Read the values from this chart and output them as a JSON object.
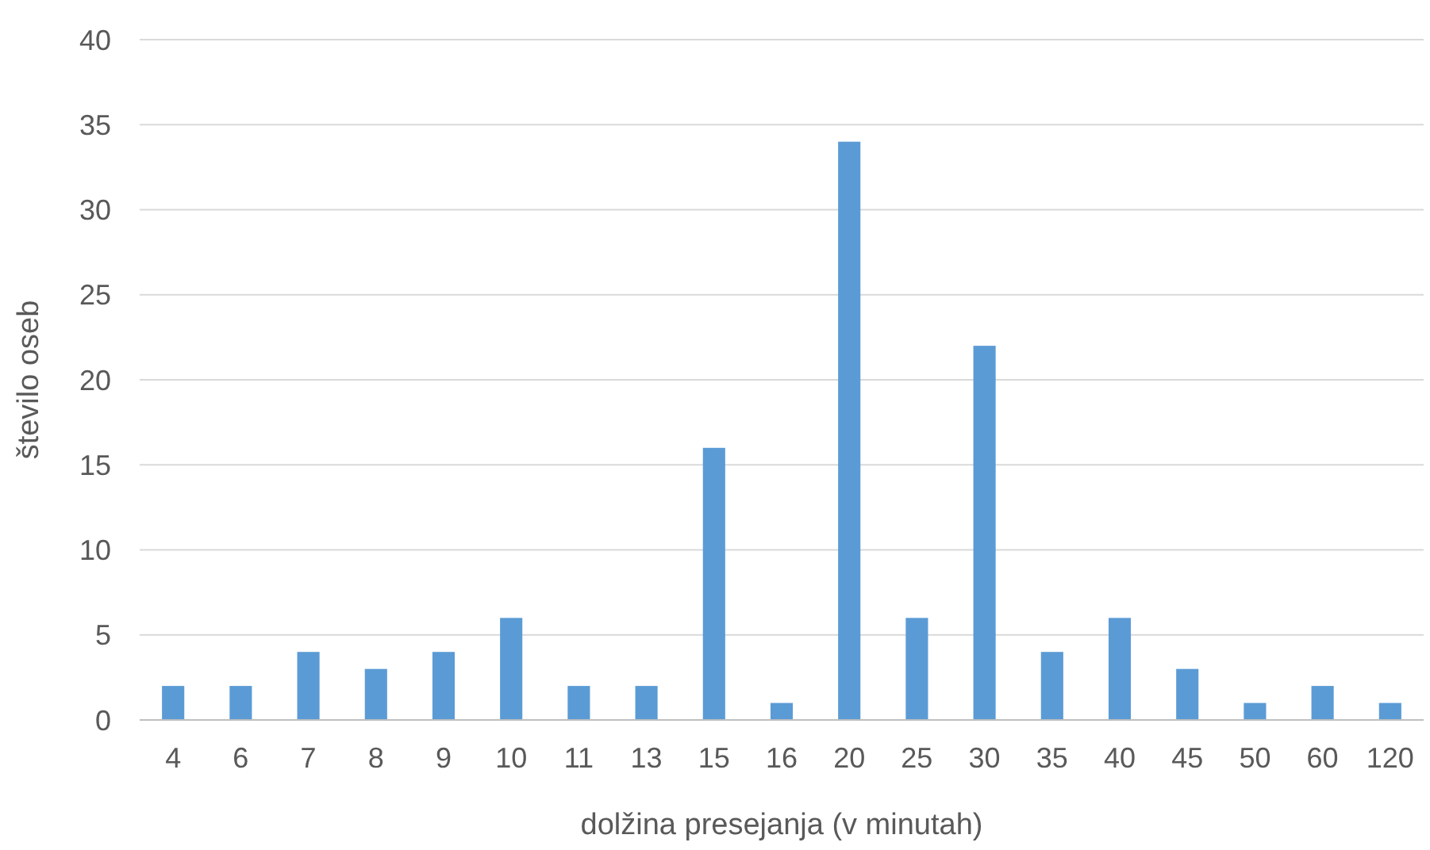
{
  "chart_data": {
    "type": "bar",
    "xlabel": "dolžina presejanja (v minutah)",
    "ylabel": "število oseb",
    "categories": [
      "4",
      "6",
      "7",
      "8",
      "9",
      "10",
      "11",
      "13",
      "15",
      "16",
      "20",
      "25",
      "30",
      "35",
      "40",
      "45",
      "50",
      "60",
      "120"
    ],
    "values": [
      2,
      2,
      4,
      3,
      4,
      6,
      2,
      2,
      16,
      1,
      34,
      6,
      22,
      4,
      6,
      3,
      1,
      2,
      1
    ],
    "color": "#5b9bd5",
    "ylim": [
      0,
      40
    ],
    "yticks": [
      0,
      5,
      10,
      15,
      20,
      25,
      30,
      35,
      40
    ],
    "grid": "y"
  }
}
